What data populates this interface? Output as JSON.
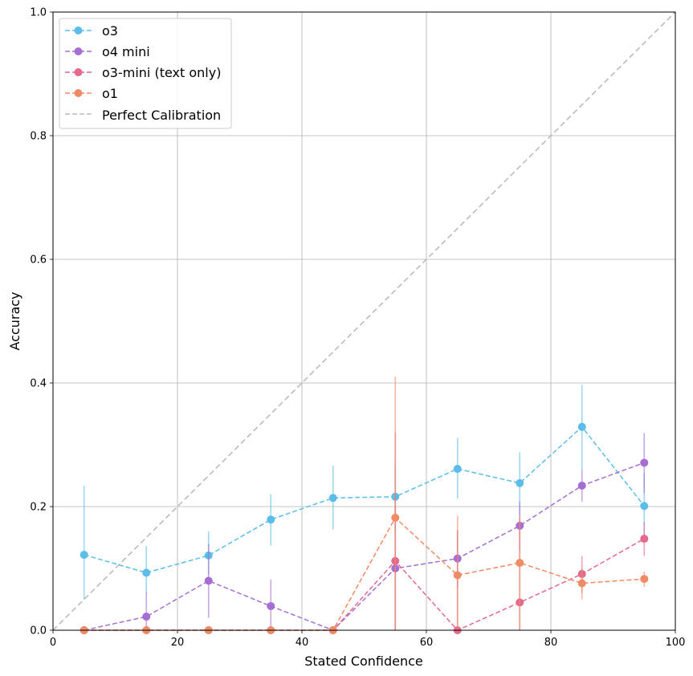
{
  "chart_data": {
    "type": "line",
    "title": "",
    "xlabel": "Stated Confidence",
    "ylabel": "Accuracy",
    "xlim": [
      0,
      100
    ],
    "ylim": [
      0,
      1.0
    ],
    "xticks": [
      0,
      20,
      40,
      60,
      80,
      100
    ],
    "yticks": [
      0.0,
      0.2,
      0.4,
      0.6,
      0.8,
      1.0
    ],
    "xtick_labels": [
      "0",
      "20",
      "40",
      "60",
      "80",
      "100"
    ],
    "ytick_labels": [
      "0.0",
      "0.2",
      "0.4",
      "0.6",
      "0.8",
      "1.0"
    ],
    "grid": true,
    "legend_position": "top-left",
    "x": [
      5,
      15,
      25,
      35,
      45,
      55,
      65,
      75,
      85,
      95
    ],
    "series": [
      {
        "name": "o3",
        "color": "#5bbde8",
        "values": [
          0.122,
          0.093,
          0.121,
          0.179,
          0.214,
          0.216,
          0.261,
          0.238,
          0.329,
          0.201
        ],
        "err_low": [
          0.05,
          0.06,
          0.09,
          0.137,
          0.163,
          0.165,
          0.213,
          0.185,
          0.26,
          0.15
        ],
        "err_high": [
          0.234,
          0.136,
          0.16,
          0.22,
          0.266,
          0.267,
          0.311,
          0.288,
          0.397,
          0.254
        ]
      },
      {
        "name": "o4 mini",
        "color": "#a66ed4",
        "values": [
          0.0,
          0.022,
          0.08,
          0.039,
          0.0,
          0.1,
          0.116,
          0.169,
          0.234,
          0.271
        ],
        "err_low": [
          0.0,
          0.0,
          0.02,
          0.0,
          0.0,
          0.0,
          0.07,
          0.13,
          0.208,
          0.222
        ],
        "err_high": [
          0.0,
          0.062,
          0.14,
          0.082,
          0.0,
          0.2,
          0.162,
          0.208,
          0.26,
          0.319
        ]
      },
      {
        "name": "o3-mini (text only)",
        "color": "#e4698c",
        "values": [
          0.0,
          0.0,
          0.0,
          0.0,
          0.0,
          0.112,
          0.0,
          0.045,
          0.091,
          0.148
        ],
        "err_low": [
          0.0,
          0.0,
          0.0,
          0.0,
          0.0,
          0.0,
          0.0,
          0.0,
          0.06,
          0.12
        ],
        "err_high": [
          0.0,
          0.0,
          0.0,
          0.0,
          0.0,
          0.32,
          0.16,
          0.18,
          0.12,
          0.175
        ]
      },
      {
        "name": "o1",
        "color": "#ef8c66",
        "values": [
          0.0,
          0.0,
          0.0,
          0.0,
          0.0,
          0.182,
          0.089,
          0.109,
          0.076,
          0.083
        ],
        "err_low": [
          0.0,
          0.0,
          0.0,
          0.0,
          0.0,
          0.0,
          0.0,
          0.0,
          0.05,
          0.07
        ],
        "err_high": [
          0.0,
          0.0,
          0.0,
          0.0,
          0.0,
          0.41,
          0.185,
          0.185,
          0.1,
          0.095
        ]
      }
    ],
    "reference_line": {
      "name": "Perfect Calibration",
      "color": "#bbbbbb",
      "x": [
        0,
        100
      ],
      "y": [
        0.0,
        1.0
      ]
    }
  }
}
